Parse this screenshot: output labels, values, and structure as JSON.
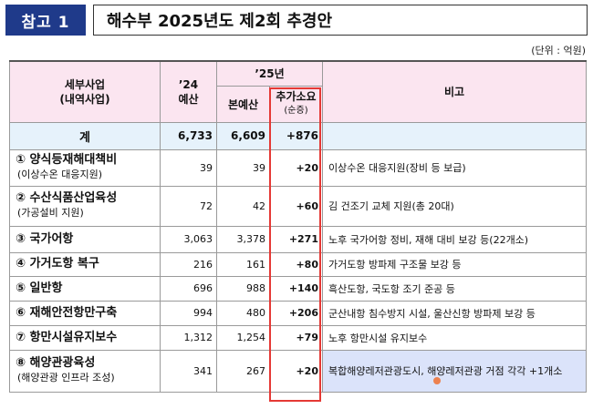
{
  "header": {
    "badge": "참고 1",
    "title": "해수부 2025년도 제2회 추경안"
  },
  "unit": "(단위 : 억원)",
  "columns": {
    "project": "세부사업",
    "project_sub": "(내역사업)",
    "y24": "’24",
    "y24_sub": "예산",
    "y25": "’25년",
    "base": "본예산",
    "add": "추가소요",
    "add_sub": "(순증)",
    "note": "비고"
  },
  "total": {
    "label": "계",
    "y24": "6,733",
    "base": "6,609",
    "add": "+876"
  },
  "rows": [
    {
      "name": "① 양식등재해대책비",
      "sub": "(이상수온 대응지원)",
      "y24": "39",
      "base": "39",
      "add": "+20",
      "note": "이상수온 대응지원(장비 등 보급)"
    },
    {
      "name": "② 수산식품산업육성",
      "sub": "(가공설비 지원)",
      "y24": "72",
      "base": "42",
      "add": "+60",
      "note": "김 건조기 교체 지원(총 20대)"
    },
    {
      "name": "③ 국가어항",
      "sub": "",
      "y24": "3,063",
      "base": "3,378",
      "add": "+271",
      "note": "노후 국가어항 정비, 재해 대비 보강 등(22개소)"
    },
    {
      "name": "④ 가거도항 복구",
      "sub": "",
      "y24": "216",
      "base": "161",
      "add": "+80",
      "note": "가거도항 방파제 구조물 보강 등"
    },
    {
      "name": "⑤ 일반항",
      "sub": "",
      "y24": "696",
      "base": "988",
      "add": "+140",
      "note": "흑산도항, 국도항 조기 준공 등"
    },
    {
      "name": "⑥ 재해안전항만구축",
      "sub": "",
      "y24": "994",
      "base": "480",
      "add": "+206",
      "note": "군산내항 침수방지 시설, 울산신항 방파제 보강 등"
    },
    {
      "name": "⑦ 항만시설유지보수",
      "sub": "",
      "y24": "1,312",
      "base": "1,254",
      "add": "+79",
      "note": "노후 항만시설 유지보수"
    },
    {
      "name": "⑧ 해양관광육성",
      "sub": "(해양관광 인프라 조성)",
      "y24": "341",
      "base": "267",
      "add": "+20",
      "note": "복합해양레저관광도시, 해양레저관광 거점 각각 +1개소"
    }
  ]
}
